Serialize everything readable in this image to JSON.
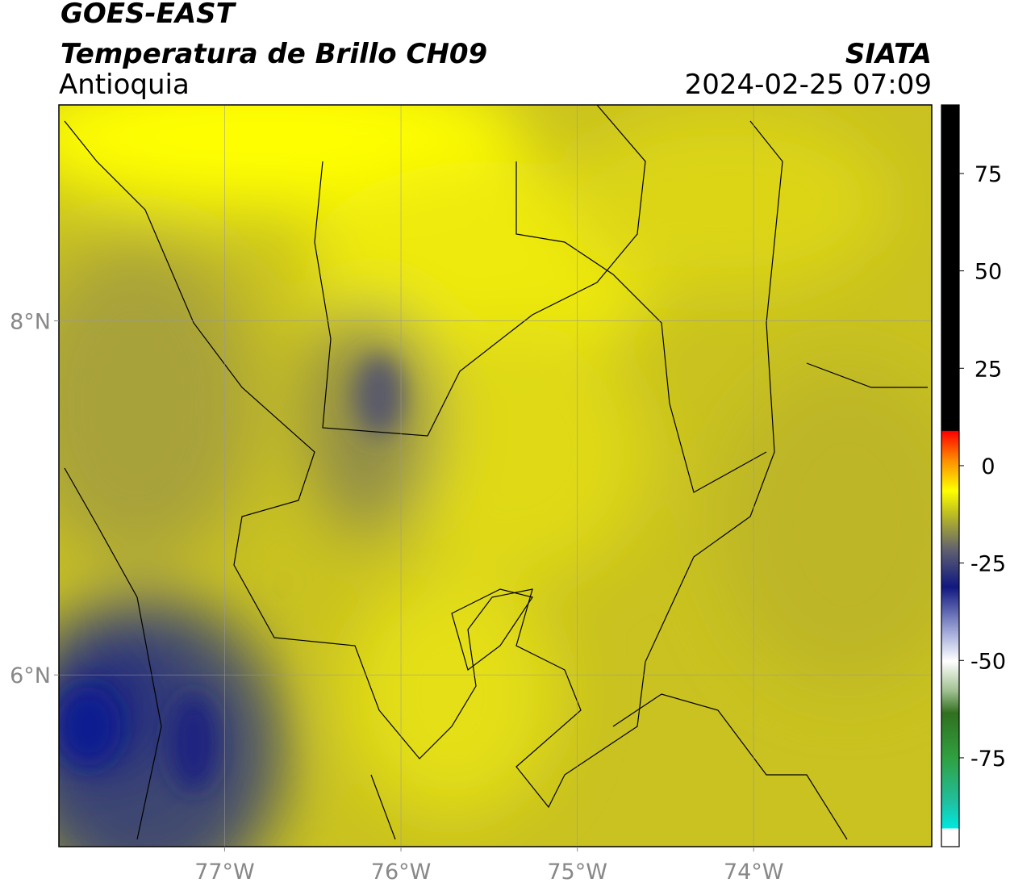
{
  "header": {
    "title": "GOES-EAST",
    "subtitle": "Temperatura de Brillo CH09",
    "region": "Antioquia",
    "source": "SIATA",
    "datetime": "2024-02-25 07:09"
  },
  "map": {
    "xlim": [
      -77.94,
      -72.99
    ],
    "ylim": [
      5.03,
      9.22
    ],
    "xticks": [
      {
        "value": -77,
        "label": "77°W"
      },
      {
        "value": -76,
        "label": "76°W"
      },
      {
        "value": -75,
        "label": "75°W"
      },
      {
        "value": -74,
        "label": "74°W"
      }
    ],
    "yticks": [
      {
        "value": 8,
        "label": "8°N"
      },
      {
        "value": 6,
        "label": "6°N"
      }
    ],
    "grid": true
  },
  "colorbar": {
    "clim": [
      -97.8,
      92.6
    ],
    "ticks": [
      75,
      50,
      25,
      0,
      -25,
      -50,
      -75
    ]
  }
}
